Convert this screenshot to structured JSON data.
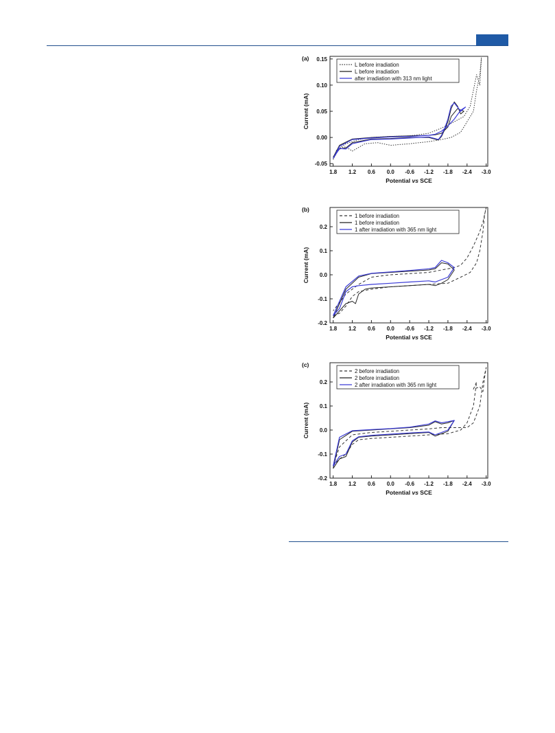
{
  "page": {
    "colors": {
      "rule": "#1f4e8c",
      "tab": "#1f5aa6",
      "blue": "#3a3ad6",
      "black": "#222222"
    }
  },
  "chart_data": [
    {
      "type": "line",
      "panel_label": "(a)",
      "xlabel_prefix": "Potential ",
      "xlabel_italic": "vs",
      "xlabel_suffix": " SCE",
      "ylabel": "Current (mA)",
      "xlim": [
        1.9,
        -3.05
      ],
      "ylim": [
        -0.055,
        0.155
      ],
      "xticks": [
        1.8,
        1.2,
        0.6,
        0.0,
        -0.6,
        -1.2,
        -1.8,
        -2.4,
        -3.0
      ],
      "xtick_labels": [
        "1.8",
        "1.2",
        "0.6",
        "0.0",
        "-0.6",
        "-1.2",
        "-1.8",
        "-2.4",
        "-3.0"
      ],
      "yticks": [
        -0.05,
        0.0,
        0.05,
        0.1,
        0.15
      ],
      "ytick_labels": [
        "-0.05",
        "0.00",
        "0.05",
        "0.10",
        "0.15"
      ],
      "legend": [
        {
          "label": "L before irradiation",
          "style": "dotted",
          "color": "#333333"
        },
        {
          "label": "L before irradiation",
          "style": "solid",
          "color": "#222222"
        },
        {
          "label": "after irradiation with 313 nm light",
          "style": "solid",
          "color": "#3a3ad6"
        }
      ],
      "series": [
        {
          "style": "dotted",
          "color": "#333333",
          "x": [
            1.8,
            1.6,
            1.4,
            1.2,
            0.8,
            0.4,
            0.0,
            -0.6,
            -1.2,
            -1.6,
            -1.9,
            -2.2,
            -2.4,
            -2.6,
            -2.7,
            -2.8,
            -2.85,
            -2.8,
            -2.7,
            -2.5,
            -2.3,
            -2.0,
            -1.6,
            -1.2,
            -0.6,
            0.0,
            0.6,
            1.0,
            1.4,
            1.7,
            1.8
          ],
          "y": [
            -0.042,
            -0.02,
            -0.018,
            -0.026,
            -0.012,
            -0.01,
            -0.015,
            -0.012,
            -0.008,
            -0.004,
            0.0,
            0.01,
            0.03,
            0.05,
            0.09,
            0.12,
            0.152,
            0.1,
            0.12,
            0.06,
            0.04,
            0.03,
            0.018,
            0.008,
            0.003,
            0.002,
            0.0,
            -0.004,
            -0.012,
            -0.025,
            -0.042
          ]
        },
        {
          "style": "solid",
          "color": "#222222",
          "x": [
            1.8,
            1.6,
            1.4,
            1.2,
            0.6,
            0.0,
            -0.6,
            -1.2,
            -1.5,
            -1.6,
            -1.7,
            -1.8,
            -1.9,
            -2.0,
            -2.1,
            -2.2,
            -2.3,
            -2.1,
            -1.9,
            -1.8,
            -1.6,
            -1.4,
            -1.2,
            -0.6,
            0.0,
            0.6,
            1.2,
            1.6,
            1.8
          ],
          "y": [
            -0.038,
            -0.022,
            -0.02,
            -0.01,
            -0.003,
            -0.002,
            0.0,
            0.0,
            -0.005,
            0.002,
            0.015,
            0.03,
            0.055,
            0.068,
            0.06,
            0.045,
            0.05,
            0.055,
            0.04,
            0.02,
            0.008,
            0.005,
            0.004,
            0.003,
            0.002,
            0.0,
            -0.003,
            -0.015,
            -0.038
          ]
        },
        {
          "style": "solid",
          "color": "#3a3ad6",
          "x": [
            1.8,
            1.6,
            1.4,
            1.2,
            0.6,
            0.0,
            -0.6,
            -1.2,
            -1.5,
            -1.6,
            -1.7,
            -1.8,
            -1.9,
            -2.0,
            -2.1,
            -2.2,
            -2.35,
            -2.2,
            -2.0,
            -1.8,
            -1.6,
            -1.4,
            -1.2,
            -0.6,
            0.0,
            0.6,
            1.2,
            1.6,
            1.8
          ],
          "y": [
            -0.04,
            -0.021,
            -0.022,
            -0.012,
            -0.004,
            -0.003,
            -0.001,
            0.001,
            -0.004,
            0.004,
            0.018,
            0.035,
            0.06,
            0.066,
            0.058,
            0.05,
            0.058,
            0.052,
            0.035,
            0.022,
            0.012,
            0.006,
            0.004,
            0.002,
            0.001,
            -0.001,
            -0.004,
            -0.017,
            -0.04
          ]
        }
      ]
    },
    {
      "type": "line",
      "panel_label": "(b)",
      "xlabel_prefix": "Potential ",
      "xlabel_italic": "vs",
      "xlabel_suffix": " SCE",
      "ylabel": "Current (mA)",
      "xlim": [
        1.9,
        -3.05
      ],
      "ylim": [
        -0.2,
        0.28
      ],
      "xticks": [
        1.8,
        1.2,
        0.6,
        0.0,
        -0.6,
        -1.2,
        -1.8,
        -2.4,
        -3.0
      ],
      "xtick_labels": [
        "1.8",
        "1.2",
        "0.6",
        "0.0",
        "-0.6",
        "-1.2",
        "-1.8",
        "-2.4",
        "-3.0"
      ],
      "yticks": [
        -0.2,
        -0.1,
        0.0,
        0.1,
        0.2
      ],
      "ytick_labels": [
        "-0.2",
        "-0.1",
        "0.0",
        "0.1",
        "0.2"
      ],
      "legend": [
        {
          "label": "1 before irradiation",
          "style": "dashed",
          "color": "#333333"
        },
        {
          "label": "1 before irradiation",
          "style": "solid",
          "color": "#222222"
        },
        {
          "label": "1 after irradiation with 365 nm light",
          "style": "solid",
          "color": "#3a3ad6"
        }
      ],
      "series": [
        {
          "style": "dashed",
          "color": "#333333",
          "x": [
            1.8,
            1.6,
            1.4,
            1.2,
            1.0,
            0.6,
            0.0,
            -0.6,
            -1.2,
            -1.8,
            -2.2,
            -2.5,
            -2.7,
            -2.8,
            -2.9,
            -2.95,
            -3.0,
            -2.9,
            -2.8,
            -2.6,
            -2.4,
            -2.2,
            -2.0,
            -1.6,
            -1.2,
            -0.6,
            0.0,
            0.6,
            1.0,
            1.4,
            1.8
          ],
          "y": [
            -0.17,
            -0.16,
            -0.13,
            -0.09,
            -0.07,
            -0.06,
            -0.05,
            -0.045,
            -0.04,
            -0.035,
            -0.01,
            0.01,
            0.05,
            0.1,
            0.18,
            0.25,
            0.28,
            0.22,
            0.18,
            0.12,
            0.07,
            0.04,
            0.03,
            0.02,
            0.01,
            0.005,
            0.0,
            -0.01,
            -0.04,
            -0.08,
            -0.15
          ]
        },
        {
          "style": "solid",
          "color": "#222222",
          "x": [
            1.8,
            1.6,
            1.4,
            1.2,
            1.1,
            1.0,
            0.8,
            0.6,
            0.0,
            -0.6,
            -1.2,
            -1.4,
            -1.6,
            -1.8,
            -2.0,
            -1.8,
            -1.6,
            -1.4,
            -1.2,
            -0.6,
            0.0,
            0.6,
            1.0,
            1.4,
            1.6,
            1.8
          ],
          "y": [
            -0.18,
            -0.15,
            -0.12,
            -0.11,
            -0.12,
            -0.08,
            -0.06,
            -0.055,
            -0.05,
            -0.045,
            -0.04,
            -0.045,
            -0.035,
            -0.02,
            0.02,
            0.045,
            0.05,
            0.025,
            0.02,
            0.015,
            0.01,
            0.005,
            -0.01,
            -0.06,
            -0.12,
            -0.18
          ]
        },
        {
          "style": "solid",
          "color": "#3a3ad6",
          "x": [
            1.8,
            1.6,
            1.4,
            1.2,
            1.0,
            0.6,
            0.0,
            -0.6,
            -1.2,
            -1.4,
            -1.6,
            -1.8,
            -2.0,
            -1.8,
            -1.6,
            -1.4,
            -1.2,
            -0.6,
            0.0,
            0.6,
            1.0,
            1.4,
            1.6,
            1.8
          ],
          "y": [
            -0.17,
            -0.14,
            -0.07,
            -0.05,
            -0.045,
            -0.04,
            -0.035,
            -0.03,
            -0.025,
            -0.03,
            -0.02,
            -0.01,
            0.03,
            0.05,
            0.06,
            0.03,
            0.025,
            0.018,
            0.012,
            0.006,
            -0.005,
            -0.05,
            -0.11,
            -0.17
          ]
        }
      ]
    },
    {
      "type": "line",
      "panel_label": "(c)",
      "xlabel_prefix": "Potential ",
      "xlabel_italic": "vs",
      "xlabel_suffix": " SCE",
      "ylabel": "Current (mA)",
      "xlim": [
        1.9,
        -3.05
      ],
      "ylim": [
        -0.2,
        0.28
      ],
      "xticks": [
        1.8,
        1.2,
        0.6,
        0.0,
        -0.6,
        -1.2,
        -1.8,
        -2.4,
        -3.0
      ],
      "xtick_labels": [
        "1.8",
        "1.2",
        "0.6",
        "0.0",
        "-0.6",
        "-1.2",
        "-1.8",
        "-2.4",
        "-3.0"
      ],
      "yticks": [
        -0.2,
        -0.1,
        0.0,
        0.1,
        0.2
      ],
      "ytick_labels": [
        "-0.2",
        "-0.1",
        "0.0",
        "0.1",
        "0.2"
      ],
      "legend": [
        {
          "label": "2 before irradiation",
          "style": "dashed",
          "color": "#333333"
        },
        {
          "label": "2 before irradiation",
          "style": "solid",
          "color": "#222222"
        },
        {
          "label": "2 after irradiation with 365 nm light",
          "style": "solid",
          "color": "#3a3ad6"
        }
      ],
      "series": [
        {
          "style": "dashed",
          "color": "#333333",
          "x": [
            1.8,
            1.6,
            1.4,
            1.2,
            1.0,
            0.6,
            0.0,
            -0.6,
            -1.2,
            -1.8,
            -2.2,
            -2.4,
            -2.6,
            -2.7,
            -2.6,
            -2.8,
            -2.9,
            -2.95,
            -3.0,
            -2.9,
            -2.8,
            -2.6,
            -2.4,
            -2.0,
            -1.6,
            -1.2,
            -0.6,
            0.0,
            0.6,
            1.2,
            1.6,
            1.8
          ],
          "y": [
            -0.15,
            -0.12,
            -0.1,
            -0.06,
            -0.04,
            -0.035,
            -0.03,
            -0.025,
            -0.02,
            -0.015,
            0.0,
            0.03,
            0.1,
            0.2,
            0.17,
            0.18,
            0.16,
            0.22,
            0.26,
            0.2,
            0.1,
            0.03,
            0.01,
            0.01,
            0.01,
            0.005,
            0.0,
            -0.005,
            -0.01,
            -0.02,
            -0.07,
            -0.15
          ]
        },
        {
          "style": "solid",
          "color": "#222222",
          "x": [
            1.8,
            1.6,
            1.4,
            1.2,
            1.0,
            0.6,
            0.0,
            -0.6,
            -1.2,
            -1.4,
            -1.6,
            -1.8,
            -2.0,
            -1.8,
            -1.6,
            -1.4,
            -1.2,
            -0.6,
            0.0,
            0.6,
            1.2,
            1.6,
            1.8
          ],
          "y": [
            -0.16,
            -0.12,
            -0.11,
            -0.05,
            -0.03,
            -0.025,
            -0.02,
            -0.015,
            -0.01,
            -0.025,
            -0.015,
            -0.005,
            0.04,
            0.03,
            0.025,
            0.035,
            0.02,
            0.01,
            0.005,
            0.0,
            -0.005,
            -0.04,
            -0.16
          ]
        },
        {
          "style": "solid",
          "color": "#3a3ad6",
          "x": [
            1.8,
            1.6,
            1.4,
            1.2,
            1.0,
            0.6,
            0.0,
            -0.6,
            -1.2,
            -1.4,
            -1.6,
            -1.8,
            -2.0,
            -1.8,
            -1.6,
            -1.4,
            -1.2,
            -0.6,
            0.0,
            0.6,
            1.2,
            1.6,
            1.8
          ],
          "y": [
            -0.15,
            -0.11,
            -0.1,
            -0.045,
            -0.028,
            -0.022,
            -0.017,
            -0.012,
            -0.008,
            -0.02,
            -0.01,
            0.0,
            0.04,
            0.035,
            0.03,
            0.038,
            0.025,
            0.012,
            0.006,
            0.002,
            -0.003,
            -0.03,
            -0.15
          ]
        }
      ]
    }
  ]
}
